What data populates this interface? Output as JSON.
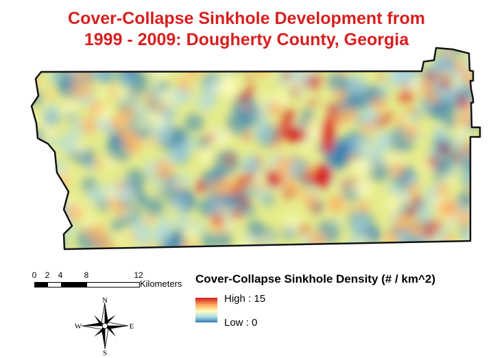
{
  "title": {
    "line1": "Cover-Collapse Sinkhole Development from",
    "line2": "1999 - 2009: Dougherty County, Georgia"
  },
  "scale_bar": {
    "ticks": [
      "0",
      "2",
      "4",
      "8",
      "12"
    ],
    "unit": "Kilometers"
  },
  "legend": {
    "title": "Cover-Collapse Sinkhole Density (# / km^2)",
    "high_label": "High : 15",
    "low_label": "Low : 0",
    "colors": [
      "#d7191c",
      "#fdae61",
      "#ffffbf",
      "#abd9e9",
      "#2c7bb6"
    ]
  },
  "compass": {
    "north": "N",
    "south": "S",
    "east": "E",
    "west": "W"
  }
}
